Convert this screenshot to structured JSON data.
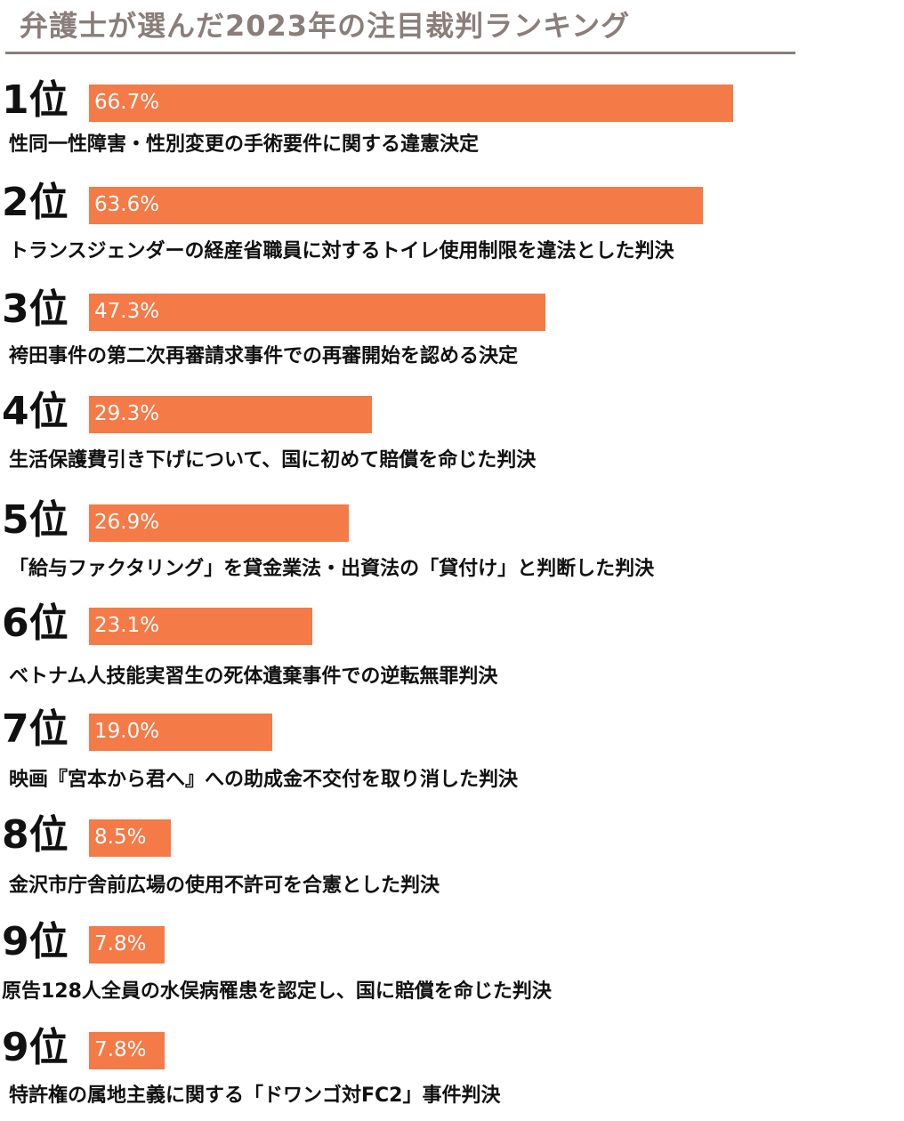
{
  "chart_data": {
    "type": "bar",
    "orientation": "horizontal",
    "title": "弁護士が選んだ2023年の注目裁判ランキング",
    "value_unit": "%",
    "grid": false,
    "legend": "none",
    "xlim": [
      0,
      100
    ],
    "categories": [
      "性同一性障害・性別変更の手術要件に関する違憲決定",
      "トランスジェンダーの経産省職員に対するトイレ使用制限を違法とした判決",
      "袴田事件の第二次再審請求事件での再審開始を認める決定",
      "生活保護費引き下げについて、国に初めて賠償を命じた判決",
      "「給与ファクタリング」を貸金業法・出資法の「貸付け」と判断した判決",
      "ベトナム人技能実習生の死体遺棄事件での逆転無罪判決",
      "映画『宮本から君へ』への助成金不交付を取り消した判決",
      "金沢市庁舎前広場の使用不許可を合憲とした判決",
      "原告128人全員の水俣病罹患を認定し、国に賠償を命じた判決",
      "特許権の属地主義に関する「ドワンゴ対FC2」事件判決"
    ],
    "ranks": [
      "1位",
      "2位",
      "3位",
      "4位",
      "5位",
      "6位",
      "7位",
      "8位",
      "9位",
      "9位"
    ],
    "values": [
      66.7,
      63.6,
      47.3,
      29.3,
      26.9,
      23.1,
      19.0,
      8.5,
      7.8,
      7.8
    ],
    "value_labels": [
      "66.7%",
      "63.6%",
      "47.3%",
      "29.3%",
      "26.9%",
      "23.1%",
      "19.0%",
      "8.5%",
      "7.8%",
      "7.8%"
    ]
  },
  "colors": {
    "bar": "#f47a47",
    "title": "#8a7e7b",
    "text": "#111111",
    "bar_text": "#ffffff"
  }
}
